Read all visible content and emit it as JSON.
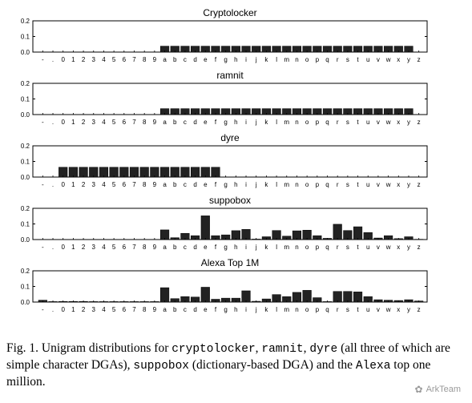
{
  "chart_data": [
    {
      "type": "bar",
      "title": "Cryptolocker",
      "ylim": [
        0,
        0.2
      ],
      "yticks": [
        "0.0",
        "0.1",
        "0.2"
      ],
      "categories": [
        "-",
        ".",
        "0",
        "1",
        "2",
        "3",
        "4",
        "5",
        "6",
        "7",
        "8",
        "9",
        "a",
        "b",
        "c",
        "d",
        "e",
        "f",
        "g",
        "h",
        "i",
        "j",
        "k",
        "l",
        "m",
        "n",
        "o",
        "p",
        "q",
        "r",
        "s",
        "t",
        "u",
        "v",
        "w",
        "x",
        "y",
        "z"
      ],
      "values": [
        0,
        0,
        0,
        0,
        0,
        0,
        0,
        0,
        0,
        0,
        0,
        0,
        0.038,
        0.038,
        0.038,
        0.038,
        0.038,
        0.038,
        0.038,
        0.038,
        0.038,
        0.038,
        0.038,
        0.038,
        0.038,
        0.038,
        0.038,
        0.038,
        0.038,
        0.038,
        0.038,
        0.038,
        0.038,
        0.038,
        0.038,
        0.038,
        0.038,
        0
      ]
    },
    {
      "type": "bar",
      "title": "ramnit",
      "ylim": [
        0,
        0.2
      ],
      "yticks": [
        "0.0",
        "0.1",
        "0.2"
      ],
      "categories": [
        "-",
        ".",
        "0",
        "1",
        "2",
        "3",
        "4",
        "5",
        "6",
        "7",
        "8",
        "9",
        "a",
        "b",
        "c",
        "d",
        "e",
        "f",
        "g",
        "h",
        "i",
        "j",
        "k",
        "l",
        "m",
        "n",
        "o",
        "p",
        "q",
        "r",
        "s",
        "t",
        "u",
        "v",
        "w",
        "x",
        "y",
        "z"
      ],
      "values": [
        0,
        0,
        0,
        0,
        0,
        0,
        0,
        0,
        0,
        0,
        0,
        0,
        0.038,
        0.038,
        0.038,
        0.038,
        0.038,
        0.038,
        0.038,
        0.038,
        0.038,
        0.038,
        0.038,
        0.038,
        0.038,
        0.038,
        0.038,
        0.038,
        0.038,
        0.038,
        0.038,
        0.038,
        0.038,
        0.038,
        0.038,
        0.038,
        0.038,
        0
      ]
    },
    {
      "type": "bar",
      "title": "dyre",
      "ylim": [
        0,
        0.2
      ],
      "yticks": [
        "0.0",
        "0.1",
        "0.2"
      ],
      "categories": [
        "-",
        ".",
        "0",
        "1",
        "2",
        "3",
        "4",
        "5",
        "6",
        "7",
        "8",
        "9",
        "a",
        "b",
        "c",
        "d",
        "e",
        "f",
        "g",
        "h",
        "i",
        "j",
        "k",
        "l",
        "m",
        "n",
        "o",
        "p",
        "q",
        "r",
        "s",
        "t",
        "u",
        "v",
        "w",
        "x",
        "y",
        "z"
      ],
      "values": [
        0,
        0,
        0.063,
        0.063,
        0.063,
        0.063,
        0.063,
        0.063,
        0.063,
        0.063,
        0.063,
        0.063,
        0.063,
        0.063,
        0.063,
        0.063,
        0.063,
        0.063,
        0,
        0,
        0,
        0,
        0,
        0,
        0,
        0,
        0,
        0,
        0,
        0,
        0,
        0,
        0,
        0,
        0,
        0,
        0,
        0
      ]
    },
    {
      "type": "bar",
      "title": "suppobox",
      "ylim": [
        0,
        0.2
      ],
      "yticks": [
        "0.0",
        "0.1",
        "0.2"
      ],
      "categories": [
        "-",
        ".",
        "0",
        "1",
        "2",
        "3",
        "4",
        "5",
        "6",
        "7",
        "8",
        "9",
        "a",
        "b",
        "c",
        "d",
        "e",
        "f",
        "g",
        "h",
        "i",
        "j",
        "k",
        "l",
        "m",
        "n",
        "o",
        "p",
        "q",
        "r",
        "s",
        "t",
        "u",
        "v",
        "w",
        "x",
        "y",
        "z"
      ],
      "values": [
        0,
        0,
        0,
        0,
        0,
        0,
        0,
        0,
        0,
        0,
        0,
        0,
        0.062,
        0.012,
        0.04,
        0.025,
        0.152,
        0.025,
        0.03,
        0.057,
        0.065,
        0.003,
        0.018,
        0.058,
        0.022,
        0.056,
        0.06,
        0.025,
        0.008,
        0.098,
        0.058,
        0.082,
        0.045,
        0.01,
        0.025,
        0.006,
        0.018,
        0.002
      ]
    },
    {
      "type": "bar",
      "title": "Alexa Top 1M",
      "ylim": [
        0,
        0.2
      ],
      "yticks": [
        "0.0",
        "0.1",
        "0.2"
      ],
      "categories": [
        "-",
        ".",
        "0",
        "1",
        "2",
        "3",
        "4",
        "5",
        "6",
        "7",
        "8",
        "9",
        "a",
        "b",
        "c",
        "d",
        "e",
        "f",
        "g",
        "h",
        "i",
        "j",
        "k",
        "l",
        "m",
        "n",
        "o",
        "p",
        "q",
        "r",
        "s",
        "t",
        "u",
        "v",
        "w",
        "x",
        "y",
        "z"
      ],
      "values": [
        0.012,
        0.003,
        0.004,
        0.004,
        0.004,
        0.003,
        0.003,
        0.003,
        0.003,
        0.003,
        0.003,
        0.003,
        0.092,
        0.022,
        0.035,
        0.032,
        0.095,
        0.018,
        0.025,
        0.025,
        0.072,
        0.005,
        0.02,
        0.048,
        0.035,
        0.062,
        0.075,
        0.028,
        0.003,
        0.068,
        0.068,
        0.065,
        0.035,
        0.015,
        0.012,
        0.01,
        0.015,
        0.007
      ]
    }
  ],
  "caption": {
    "p1": "Fig. 1.  Unigram distributions for ",
    "m1": "cryptolocker",
    "p2": ", ",
    "m2": "ramnit",
    "p3": ", ",
    "m3": "dyre",
    "p4": " (all three of which are simple character DGAs), ",
    "m4": "suppobox",
    "p5": " (dictionary-based DGA) and the ",
    "m5": "Alexa",
    "p6": " top one million."
  },
  "watermark": {
    "icon": "wechat-icon",
    "label": "ArkTeam"
  }
}
